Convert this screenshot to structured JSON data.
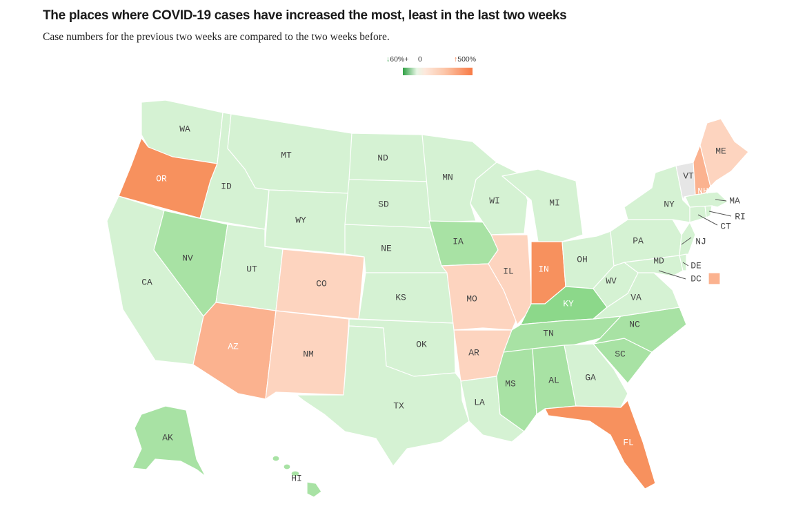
{
  "header": {
    "title": "The places where COVID-19 cases have increased the most, least in the last two weeks",
    "subtitle": "Case numbers for the previous two weeks are compared to the two weeks before."
  },
  "legend": {
    "low_label": "60%+",
    "mid_label": "0",
    "high_label": "500%",
    "low_color": "#2ea043",
    "mid_color": "#fde8dc",
    "high_color": "#f87a45"
  },
  "colors": {
    "level1": "#d5f2d3",
    "level2": "#a8e2a4",
    "level3": "#8cd88a",
    "level4": "#fdd4bf",
    "level5": "#fbb28f",
    "level6": "#f7915e",
    "na": "#e6e6e6"
  },
  "states": [
    {
      "abbr": "WA",
      "level": "level1"
    },
    {
      "abbr": "OR",
      "level": "level6"
    },
    {
      "abbr": "CA",
      "level": "level1"
    },
    {
      "abbr": "NV",
      "level": "level2"
    },
    {
      "abbr": "ID",
      "level": "level1"
    },
    {
      "abbr": "MT",
      "level": "level1"
    },
    {
      "abbr": "WY",
      "level": "level1"
    },
    {
      "abbr": "UT",
      "level": "level1"
    },
    {
      "abbr": "AZ",
      "level": "level5"
    },
    {
      "abbr": "CO",
      "level": "level4"
    },
    {
      "abbr": "NM",
      "level": "level4"
    },
    {
      "abbr": "ND",
      "level": "level1"
    },
    {
      "abbr": "SD",
      "level": "level1"
    },
    {
      "abbr": "NE",
      "level": "level1"
    },
    {
      "abbr": "KS",
      "level": "level1"
    },
    {
      "abbr": "OK",
      "level": "level1"
    },
    {
      "abbr": "TX",
      "level": "level1"
    },
    {
      "abbr": "MN",
      "level": "level1"
    },
    {
      "abbr": "IA",
      "level": "level2"
    },
    {
      "abbr": "MO",
      "level": "level4"
    },
    {
      "abbr": "AR",
      "level": "level4"
    },
    {
      "abbr": "LA",
      "level": "level1"
    },
    {
      "abbr": "WI",
      "level": "level1"
    },
    {
      "abbr": "IL",
      "level": "level4"
    },
    {
      "abbr": "MI",
      "level": "level1"
    },
    {
      "abbr": "IN",
      "level": "level6"
    },
    {
      "abbr": "OH",
      "level": "level1"
    },
    {
      "abbr": "KY",
      "level": "level3"
    },
    {
      "abbr": "TN",
      "level": "level2"
    },
    {
      "abbr": "MS",
      "level": "level2"
    },
    {
      "abbr": "AL",
      "level": "level2"
    },
    {
      "abbr": "GA",
      "level": "level1"
    },
    {
      "abbr": "FL",
      "level": "level6"
    },
    {
      "abbr": "SC",
      "level": "level2"
    },
    {
      "abbr": "NC",
      "level": "level2"
    },
    {
      "abbr": "VA",
      "level": "level1"
    },
    {
      "abbr": "WV",
      "level": "level1"
    },
    {
      "abbr": "PA",
      "level": "level1"
    },
    {
      "abbr": "NY",
      "level": "level1"
    },
    {
      "abbr": "NJ",
      "level": "level1"
    },
    {
      "abbr": "DE",
      "level": "level1"
    },
    {
      "abbr": "MD",
      "level": "level1"
    },
    {
      "abbr": "DC",
      "level": "level5"
    },
    {
      "abbr": "CT",
      "level": "level1"
    },
    {
      "abbr": "RI",
      "level": "level1"
    },
    {
      "abbr": "MA",
      "level": "level1"
    },
    {
      "abbr": "VT",
      "level": "na"
    },
    {
      "abbr": "NH",
      "level": "level5"
    },
    {
      "abbr": "ME",
      "level": "level4"
    },
    {
      "abbr": "AK",
      "level": "level2"
    },
    {
      "abbr": "HI",
      "level": "level2"
    }
  ]
}
